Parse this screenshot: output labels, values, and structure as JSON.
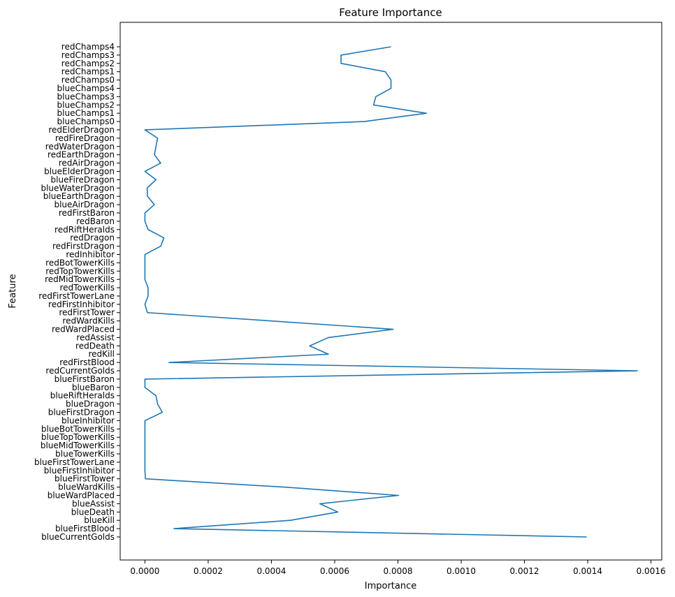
{
  "chart_data": {
    "type": "line",
    "title": "Feature Importance",
    "xlabel": "Importance",
    "ylabel": "Feature",
    "xlim": [
      -7.82e-05,
      0.001634
    ],
    "xticks": [
      0.0,
      0.0002,
      0.0004,
      0.0006,
      0.0008,
      0.001,
      0.0012,
      0.0014,
      0.0016
    ],
    "xtick_labels": [
      "0.0000",
      "0.0002",
      "0.0004",
      "0.0006",
      "0.0008",
      "0.0010",
      "0.0012",
      "0.0014",
      "0.0016"
    ],
    "grid": false,
    "line_color": "#1f77b4",
    "series": [
      {
        "y": [
          "blueCurrentGolds",
          "blueFirstBlood",
          "blueKill",
          "blueDeath",
          "blueAssist",
          "blueWardPlaced",
          "blueWardKills",
          "blueFirstTower",
          "blueFirstInhibitor",
          "blueFirstTowerLane",
          "blueTowerKills",
          "blueMidTowerKills",
          "blueTopTowerKills",
          "blueBotTowerKills",
          "blueInhibitor",
          "blueFirstDragon",
          "blueDragon",
          "blueRiftHeralds",
          "blueBaron",
          "blueFirstBaron",
          "redCurrentGolds",
          "redFirstBlood",
          "redKill",
          "redDeath",
          "redAssist",
          "redWardPlaced",
          "redWardKills",
          "redFirstTower",
          "redFirstInhibitor",
          "redFirstTowerLane",
          "redTowerKills",
          "redMidTowerKills",
          "redTopTowerKills",
          "redBotTowerKills",
          "redInhibitor",
          "redFirstDragon",
          "redDragon",
          "redRiftHeralds",
          "redBaron",
          "redFirstBaron",
          "blueAirDragon",
          "blueEarthDragon",
          "blueWaterDragon",
          "blueFireDragon",
          "blueElderDragon",
          "redAirDragon",
          "redEarthDragon",
          "redWaterDragon",
          "redFireDragon",
          "redElderDragon",
          "blueChamps0",
          "blueChamps1",
          "blueChamps2",
          "blueChamps3",
          "blueChamps4",
          "redChamps0",
          "redChamps1",
          "redChamps2",
          "redChamps3",
          "redChamps4"
        ],
        "x": [
          0.001397,
          9.17e-05,
          0.00046,
          0.00061,
          0.000553,
          0.000802,
          0.00044,
          1.7e-06,
          0.0,
          0.0,
          0.0,
          0.0,
          0.0,
          0.0,
          0.0,
          5.5e-05,
          4e-05,
          3.5e-05,
          0.0,
          0.0,
          0.001557,
          7.6e-05,
          0.00058,
          0.000521,
          0.00058,
          0.000785,
          0.0004,
          8e-06,
          0.0,
          1e-05,
          1e-05,
          0.0,
          0.0,
          0.0,
          0.0,
          5e-05,
          6e-05,
          1e-05,
          0.0,
          0.0,
          3e-05,
          8e-06,
          7e-06,
          3.5e-05,
          0.0,
          5e-05,
          3e-05,
          3.5e-05,
          4e-05,
          0.0,
          0.000693,
          0.00089,
          0.000723,
          0.00073,
          0.000778,
          0.000778,
          0.00076,
          0.00062,
          0.00062,
          0.000778
        ]
      }
    ]
  }
}
